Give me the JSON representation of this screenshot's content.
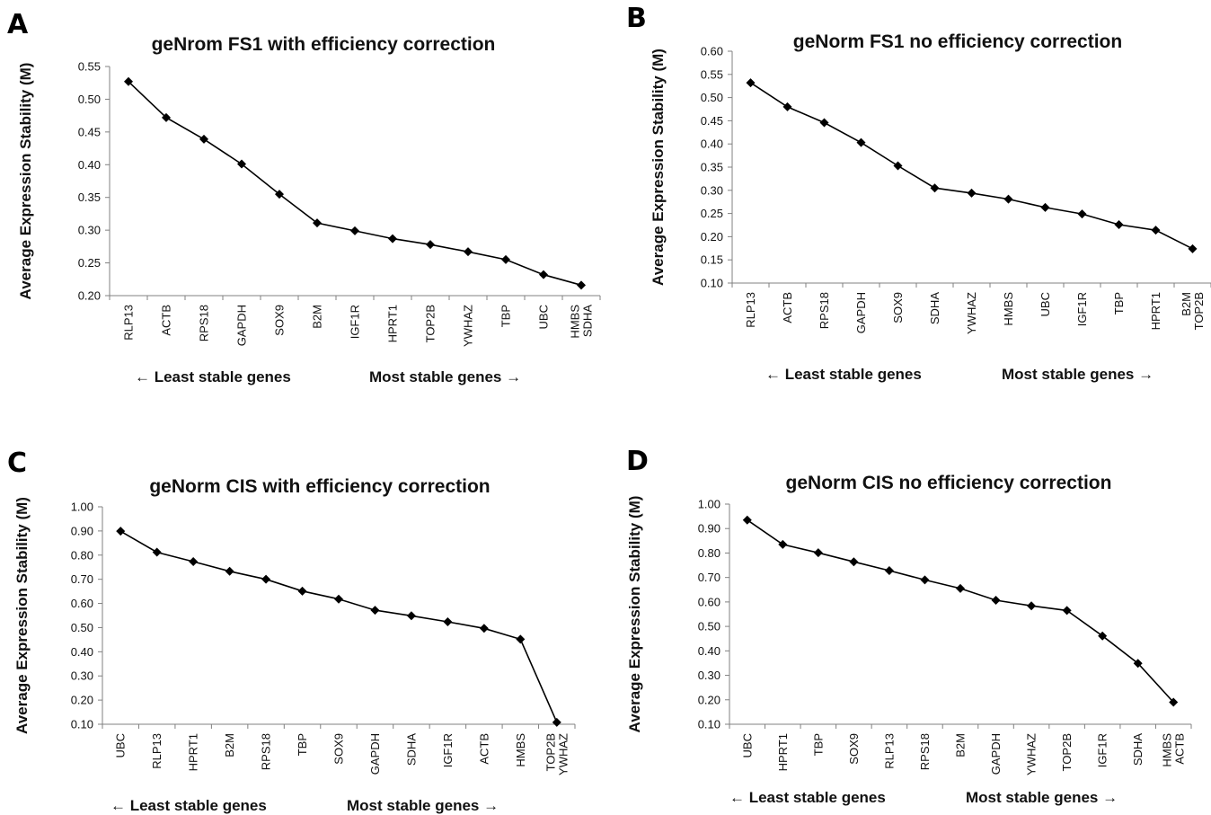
{
  "chart_data": [
    {
      "panel": "A",
      "type": "line",
      "title": "geNrom FS1 with efficiency correction",
      "ylabel": "Average Expression Stability (M)",
      "ylim": [
        0.2,
        0.55
      ],
      "yticks": [
        "0.20",
        "0.25",
        "0.30",
        "0.35",
        "0.40",
        "0.45",
        "0.50",
        "0.55"
      ],
      "categories": [
        [
          "RLP13"
        ],
        [
          "ACTB"
        ],
        [
          "RPS18"
        ],
        [
          "GAPDH"
        ],
        [
          "SOX9"
        ],
        [
          "B2M"
        ],
        [
          "IGF1R"
        ],
        [
          "HPRT1"
        ],
        [
          "TOP2B"
        ],
        [
          "YWHAZ"
        ],
        [
          "TBP"
        ],
        [
          "UBC"
        ],
        [
          "HMBS",
          "SDHA"
        ]
      ],
      "values": [
        0.527,
        0.472,
        0.439,
        0.401,
        0.355,
        0.311,
        0.299,
        0.287,
        0.278,
        0.267,
        0.255,
        0.232,
        0.216
      ],
      "left_note": "← Least stable genes",
      "right_note": "Most stable genes →"
    },
    {
      "panel": "B",
      "type": "line",
      "title": "geNorm FS1 no efficiency correction",
      "ylabel": "Average Expression Stability (M)",
      "ylim": [
        0.1,
        0.6
      ],
      "yticks": [
        "0.10",
        "0.15",
        "0.20",
        "0.25",
        "0.30",
        "0.35",
        "0.40",
        "0.45",
        "0.50",
        "0.55",
        "0.60"
      ],
      "categories": [
        [
          "RLP13"
        ],
        [
          "ACTB"
        ],
        [
          "RPS18"
        ],
        [
          "GAPDH"
        ],
        [
          "SOX9"
        ],
        [
          "SDHA"
        ],
        [
          "YWHAZ"
        ],
        [
          "HMBS"
        ],
        [
          "UBC"
        ],
        [
          "IGF1R"
        ],
        [
          "TBP"
        ],
        [
          "HPRT1"
        ],
        [
          "B2M",
          "TOP2B"
        ]
      ],
      "values": [
        0.532,
        0.48,
        0.446,
        0.403,
        0.353,
        0.305,
        0.294,
        0.281,
        0.263,
        0.249,
        0.226,
        0.214,
        0.174
      ],
      "left_note": "← Least stable genes",
      "right_note": "Most stable genes →"
    },
    {
      "panel": "C",
      "type": "line",
      "title": "geNorm CIS with efficiency correction",
      "ylabel": "Average Expression Stability (M)",
      "ylim": [
        0.1,
        1.0
      ],
      "yticks": [
        "0.10",
        "0.20",
        "0.30",
        "0.40",
        "0.50",
        "0.60",
        "0.70",
        "0.80",
        "0.90",
        "1.00"
      ],
      "categories": [
        [
          "UBC"
        ],
        [
          "RLP13"
        ],
        [
          "HPRT1"
        ],
        [
          "B2M"
        ],
        [
          "RPS18"
        ],
        [
          "TBP"
        ],
        [
          "SOX9"
        ],
        [
          "GAPDH"
        ],
        [
          "SDHA"
        ],
        [
          "IGF1R"
        ],
        [
          "ACTB"
        ],
        [
          "HMBS"
        ],
        [
          "TOP2B",
          "YWHAZ"
        ]
      ],
      "values": [
        0.899,
        0.812,
        0.773,
        0.733,
        0.7,
        0.651,
        0.618,
        0.572,
        0.549,
        0.524,
        0.497,
        0.452,
        0.108
      ],
      "left_note": "← Least stable genes",
      "right_note": "Most stable genes →"
    },
    {
      "panel": "D",
      "type": "line",
      "title": "geNorm CIS no efficiency correction",
      "ylabel": "Average Expression Stability (M)",
      "ylim": [
        0.1,
        1.0
      ],
      "yticks": [
        "0.10",
        "0.20",
        "0.30",
        "0.40",
        "0.50",
        "0.60",
        "0.70",
        "0.80",
        "0.90",
        "1.00"
      ],
      "categories": [
        [
          "UBC"
        ],
        [
          "HPRT1"
        ],
        [
          "TBP"
        ],
        [
          "SOX9"
        ],
        [
          "RLP13"
        ],
        [
          "RPS18"
        ],
        [
          "B2M"
        ],
        [
          "GAPDH"
        ],
        [
          "YWHAZ"
        ],
        [
          "TOP2B"
        ],
        [
          "IGF1R"
        ],
        [
          "SDHA"
        ],
        [
          "HMBS",
          "ACTB"
        ]
      ],
      "values": [
        0.935,
        0.835,
        0.801,
        0.764,
        0.728,
        0.69,
        0.655,
        0.607,
        0.584,
        0.565,
        0.461,
        0.349,
        0.19
      ],
      "left_note": "← Least stable genes",
      "right_note": "Most stable genes →"
    }
  ]
}
